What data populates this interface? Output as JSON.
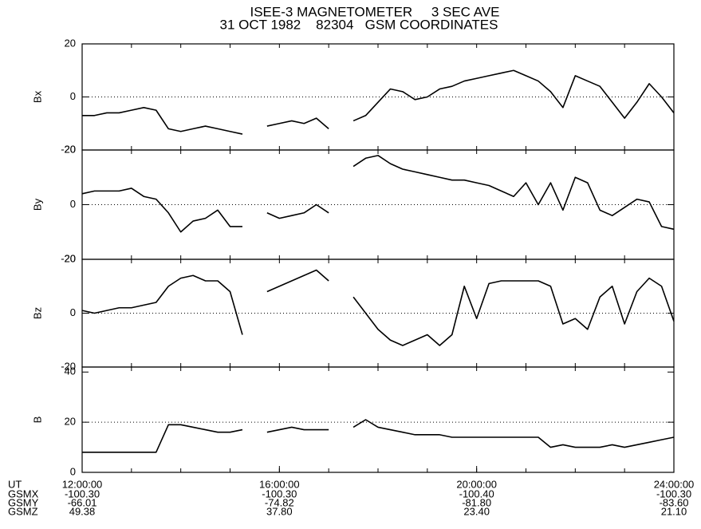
{
  "title": [
    "ISEE-3 MAGNETOMETER     3 SEC AVE",
    "31 OCT 1982    82304   GSM COORDINATES"
  ],
  "xlim": [
    12,
    24
  ],
  "xticks": [
    {
      "value": 12,
      "label": "12:00:00"
    },
    {
      "value": 16,
      "label": "16:00:00"
    },
    {
      "value": 20,
      "label": "20:00:00"
    },
    {
      "value": 24,
      "label": "24:00:00"
    }
  ],
  "minor_xticks": [
    12,
    13,
    14,
    15,
    16,
    17,
    18,
    19,
    20,
    21,
    22,
    23,
    24
  ],
  "time_label": "UT",
  "ephemeris": [
    {
      "name": "GSMX",
      "values": [
        "-100.30",
        "-100.30",
        "-100.40",
        "-100.30"
      ]
    },
    {
      "name": "GSMY",
      "values": [
        "-66.01",
        "-74.82",
        "-81.80",
        "-83.60"
      ]
    },
    {
      "name": "GSMZ",
      "values": [
        "49.38",
        "37.80",
        "23.40",
        "21.10"
      ]
    }
  ],
  "chart_data": [
    {
      "type": "line",
      "ylabel": "Bx",
      "color": "#000000",
      "ylim": [
        -20,
        20
      ],
      "yticks": [
        -20,
        0,
        20
      ],
      "reference_line": 0,
      "x": [
        12,
        12.25,
        12.5,
        12.75,
        13,
        13.25,
        13.5,
        13.75,
        14,
        14.25,
        14.5,
        14.75,
        15,
        15.25,
        15.5,
        15.75,
        16,
        16.25,
        16.5,
        16.75,
        17,
        17.25,
        17.5,
        17.75,
        18,
        18.25,
        18.5,
        18.75,
        19,
        19.25,
        19.5,
        19.75,
        20,
        20.25,
        20.5,
        20.75,
        21,
        21.25,
        21.5,
        21.75,
        22,
        22.25,
        22.5,
        22.75,
        23,
        23.25,
        23.5,
        23.75,
        24
      ],
      "values": [
        -7,
        -7,
        -6,
        -6,
        -5,
        -4,
        -5,
        -12,
        -13,
        -12,
        -11,
        -12,
        -13,
        -14,
        null,
        -11,
        -10,
        -9,
        -10,
        -8,
        -12,
        null,
        -9,
        -7,
        -2,
        3,
        2,
        -1,
        0,
        3,
        4,
        6,
        7,
        8,
        9,
        10,
        8,
        6,
        2,
        -4,
        8,
        6,
        4,
        -2,
        -8,
        -2,
        5,
        0,
        -6
      ]
    },
    {
      "type": "line",
      "ylabel": "By",
      "color": "#000000",
      "ylim": [
        -20,
        20
      ],
      "yticks": [
        -20,
        0,
        20
      ],
      "reference_line": 0,
      "x": [
        12,
        12.25,
        12.5,
        12.75,
        13,
        13.25,
        13.5,
        13.75,
        14,
        14.25,
        14.5,
        14.75,
        15,
        15.25,
        15.5,
        15.75,
        16,
        16.25,
        16.5,
        16.75,
        17,
        17.25,
        17.5,
        17.75,
        18,
        18.25,
        18.5,
        18.75,
        19,
        19.25,
        19.5,
        19.75,
        20,
        20.25,
        20.5,
        20.75,
        21,
        21.25,
        21.5,
        21.75,
        22,
        22.25,
        22.5,
        22.75,
        23,
        23.25,
        23.5,
        23.75,
        24
      ],
      "values": [
        4,
        5,
        5,
        5,
        6,
        3,
        2,
        -3,
        -10,
        -6,
        -5,
        -2,
        -8,
        -8,
        null,
        -3,
        -5,
        -4,
        -3,
        0,
        -3,
        null,
        14,
        17,
        18,
        15,
        13,
        12,
        11,
        10,
        9,
        9,
        8,
        7,
        5,
        3,
        8,
        0,
        8,
        -2,
        10,
        8,
        -2,
        -4,
        -1,
        2,
        1,
        -8,
        -9
      ]
    },
    {
      "type": "line",
      "ylabel": "Bz",
      "color": "#000000",
      "ylim": [
        -20,
        20
      ],
      "yticks": [
        -20,
        0,
        20
      ],
      "reference_line": 0,
      "x": [
        12,
        12.25,
        12.5,
        12.75,
        13,
        13.25,
        13.5,
        13.75,
        14,
        14.25,
        14.5,
        14.75,
        15,
        15.25,
        15.5,
        15.75,
        16,
        16.25,
        16.5,
        16.75,
        17,
        17.25,
        17.5,
        17.75,
        18,
        18.25,
        18.5,
        18.75,
        19,
        19.25,
        19.5,
        19.75,
        20,
        20.25,
        20.5,
        20.75,
        21,
        21.25,
        21.5,
        21.75,
        22,
        22.25,
        22.5,
        22.75,
        23,
        23.25,
        23.5,
        23.75,
        24
      ],
      "values": [
        1,
        0,
        1,
        2,
        2,
        3,
        4,
        10,
        13,
        14,
        12,
        12,
        8,
        -8,
        null,
        8,
        10,
        12,
        14,
        16,
        12,
        null,
        6,
        0,
        -6,
        -10,
        -12,
        -10,
        -8,
        -12,
        -8,
        10,
        -2,
        11,
        12,
        12,
        12,
        12,
        10,
        -4,
        -2,
        -6,
        6,
        10,
        -4,
        8,
        13,
        10,
        -3
      ]
    },
    {
      "type": "line",
      "ylabel": "B",
      "color": "#000000",
      "ylim": [
        0,
        42
      ],
      "yticks": [
        0,
        20,
        40
      ],
      "reference_line": 20,
      "x": [
        12,
        12.25,
        12.5,
        12.75,
        13,
        13.25,
        13.5,
        13.75,
        14,
        14.25,
        14.5,
        14.75,
        15,
        15.25,
        15.5,
        15.75,
        16,
        16.25,
        16.5,
        16.75,
        17,
        17.25,
        17.5,
        17.75,
        18,
        18.25,
        18.5,
        18.75,
        19,
        19.25,
        19.5,
        19.75,
        20,
        20.25,
        20.5,
        20.75,
        21,
        21.25,
        21.5,
        21.75,
        22,
        22.25,
        22.5,
        22.75,
        23,
        23.25,
        23.5,
        23.75,
        24
      ],
      "values": [
        8,
        8,
        8,
        8,
        8,
        8,
        8,
        19,
        19,
        18,
        17,
        16,
        16,
        17,
        null,
        16,
        17,
        18,
        17,
        17,
        17,
        null,
        18,
        21,
        18,
        17,
        16,
        15,
        15,
        15,
        14,
        14,
        14,
        14,
        14,
        14,
        14,
        14,
        10,
        11,
        10,
        10,
        10,
        11,
        10,
        11,
        12,
        13,
        14
      ]
    }
  ]
}
